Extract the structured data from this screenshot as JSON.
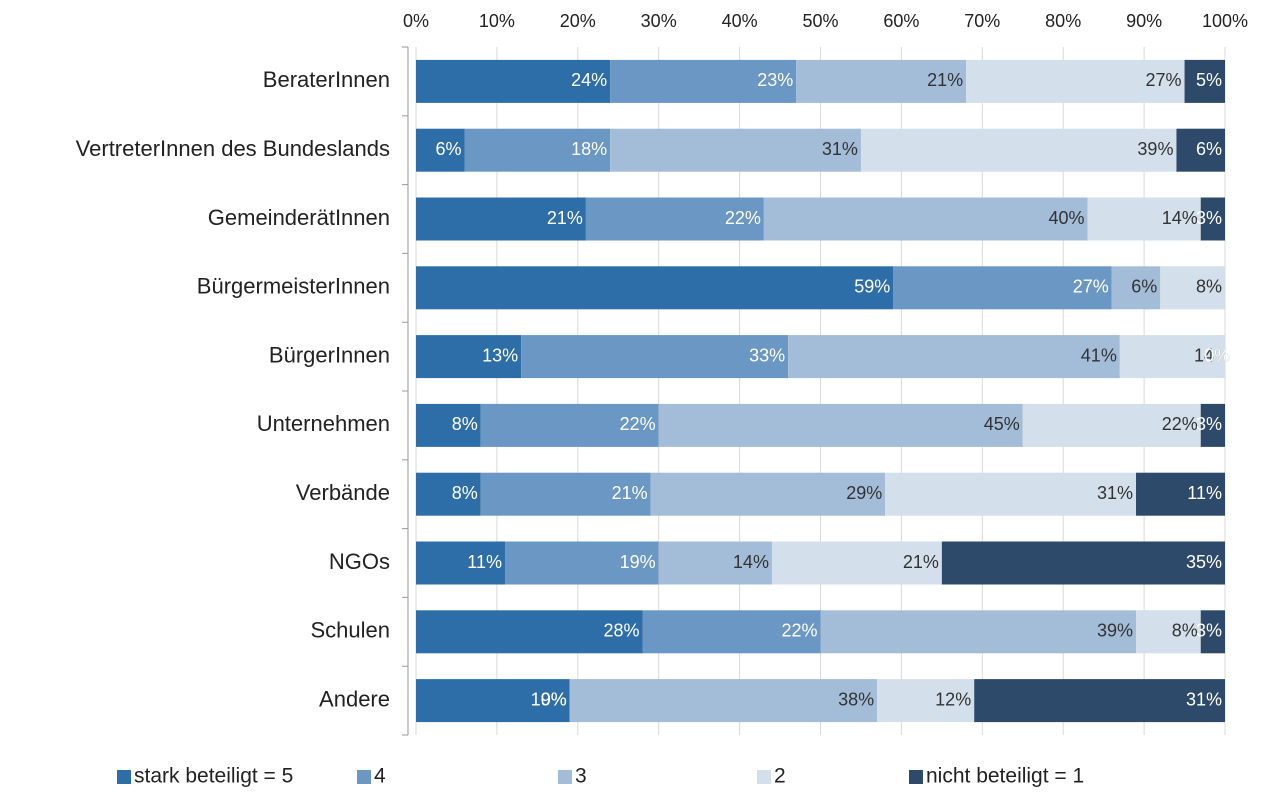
{
  "chart_data": {
    "type": "stacked-bar-horizontal",
    "categories": [
      "BeraterInnen",
      "VertreterInnen des Bundeslands",
      "GemeinderätInnen",
      "BürgermeisterInnen",
      "BürgerInnen",
      "Unternehmen",
      "Verbände",
      "NGOs",
      "Schulen",
      "Andere"
    ],
    "series": [
      {
        "name": "stark beteiligt = 5",
        "color": "#2e6ea8",
        "label_color": "#ffffff",
        "values": [
          24,
          6,
          21,
          59,
          13,
          8,
          8,
          11,
          28,
          19
        ],
        "value_labels": [
          "24%",
          "6%",
          "21%",
          "59%",
          "13%",
          "8%",
          "8%",
          "11%",
          "28%",
          "19%"
        ]
      },
      {
        "name": "4",
        "color": "#6a97c4",
        "label_color": "#ffffff",
        "values": [
          23,
          18,
          22,
          27,
          33,
          22,
          21,
          19,
          22,
          0
        ],
        "value_labels": [
          "23%",
          "18%",
          "22%",
          "27%",
          "33%",
          "22%",
          "21%",
          "19%",
          "22%",
          "0%"
        ]
      },
      {
        "name": "3",
        "color": "#a3bcd7",
        "label_color": "#333333",
        "values": [
          21,
          31,
          40,
          6,
          41,
          45,
          29,
          14,
          39,
          38
        ],
        "value_labels": [
          "21%",
          "31%",
          "40%",
          "6%",
          "41%",
          "45%",
          "29%",
          "14%",
          "39%",
          "38%"
        ]
      },
      {
        "name": "2",
        "color": "#d3dfea",
        "label_color": "#333333",
        "values": [
          27,
          39,
          14,
          8,
          14,
          22,
          31,
          21,
          8,
          12
        ],
        "value_labels": [
          "27%",
          "39%",
          "14%",
          "8%",
          "14%",
          "22%",
          "31%",
          "21%",
          "8%",
          "12%"
        ]
      },
      {
        "name": "nicht beteiligt = 1",
        "color": "#2e4a6b",
        "label_color": "#ffffff",
        "values": [
          5,
          6,
          3,
          0,
          0,
          3,
          11,
          35,
          3,
          31
        ],
        "value_labels": [
          "5%",
          "6%",
          "3%",
          null,
          "0%",
          "3%",
          "11%",
          "35%",
          "3%",
          "31%"
        ]
      }
    ],
    "xlim": [
      0,
      100
    ],
    "xticks": [
      {
        "value": 0,
        "label": "0%"
      },
      {
        "value": 10,
        "label": "10%"
      },
      {
        "value": 20,
        "label": "20%"
      },
      {
        "value": 30,
        "label": "30%"
      },
      {
        "value": 40,
        "label": "40%"
      },
      {
        "value": 50,
        "label": "50%"
      },
      {
        "value": 60,
        "label": "60%"
      },
      {
        "value": 70,
        "label": "70%"
      },
      {
        "value": 80,
        "label": "80%"
      },
      {
        "value": 90,
        "label": "90%"
      },
      {
        "value": 100,
        "label": "100%"
      }
    ],
    "grid": true,
    "legend": "bottom"
  }
}
